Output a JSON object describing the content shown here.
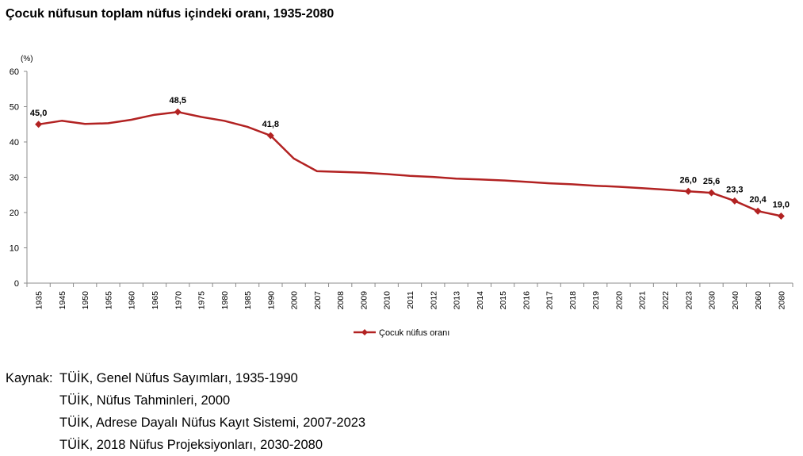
{
  "title": "Çocuk nüfusun toplam nüfus içindeki oranı, 1935-2080",
  "chart_data": {
    "type": "line",
    "title": "Çocuk nüfusun toplam nüfus içindeki oranı, 1935-2080",
    "xlabel": "",
    "ylabel": "(%)",
    "ylim": [
      0,
      60
    ],
    "yticks": [
      "0",
      "10",
      "20",
      "30",
      "40",
      "50",
      "60"
    ],
    "grid": false,
    "legend": "bottom-center",
    "line_color": "#b22222",
    "categories": [
      "1935",
      "1945",
      "1950",
      "1955",
      "1960",
      "1965",
      "1970",
      "1975",
      "1980",
      "1985",
      "1990",
      "2000",
      "2007",
      "2008",
      "2009",
      "2010",
      "2011",
      "2012",
      "2013",
      "2014",
      "2015",
      "2016",
      "2017",
      "2018",
      "2019",
      "2020",
      "2021",
      "2022",
      "2023",
      "2030",
      "2040",
      "2060",
      "2080"
    ],
    "series": [
      {
        "name": "Çocuk nüfus oranı",
        "values": [
          45.0,
          46.0,
          45.1,
          45.3,
          46.3,
          47.7,
          48.5,
          47.1,
          46.0,
          44.3,
          41.8,
          35.3,
          31.7,
          31.5,
          31.3,
          30.9,
          30.4,
          30.1,
          29.6,
          29.4,
          29.1,
          28.7,
          28.3,
          28.0,
          27.6,
          27.3,
          26.9,
          26.5,
          26.0,
          25.6,
          23.3,
          20.4,
          19.0
        ],
        "data_labels": [
          {
            "index": 0,
            "text": "45,0"
          },
          {
            "index": 6,
            "text": "48,5"
          },
          {
            "index": 10,
            "text": "41,8"
          },
          {
            "index": 28,
            "text": "26,0"
          },
          {
            "index": 29,
            "text": "25,6"
          },
          {
            "index": 30,
            "text": "23,3"
          },
          {
            "index": 31,
            "text": "20,4"
          },
          {
            "index": 32,
            "text": "19,0"
          }
        ]
      }
    ]
  },
  "sources": {
    "prefix": "Kaynak:",
    "lines": [
      "TÜİK, Genel Nüfus Sayımları, 1935-1990",
      "TÜİK, Nüfus Tahminleri, 2000",
      "TÜİK, Adrese Dayalı Nüfus Kayıt Sistemi, 2007-2023",
      "TÜİK, 2018 Nüfus Projeksiyonları, 2030-2080"
    ]
  }
}
